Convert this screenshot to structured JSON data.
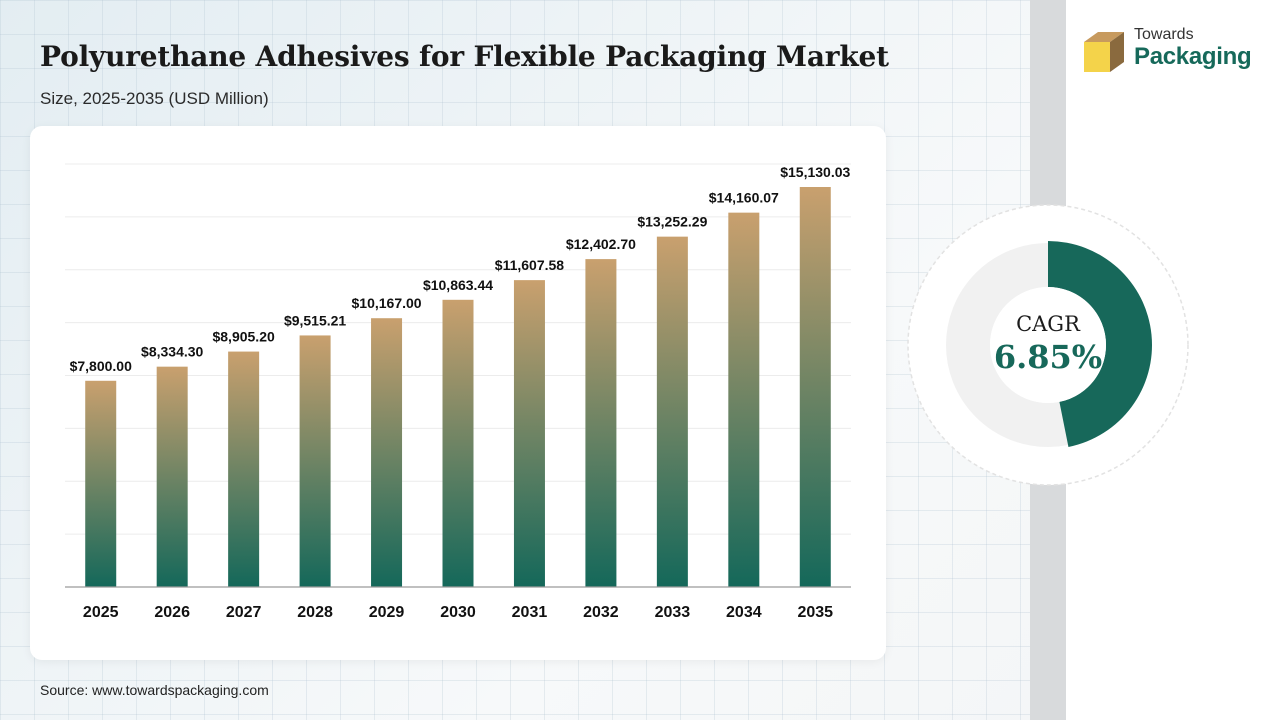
{
  "header": {
    "title": "Polyurethane Adhesives for Flexible Packaging Market",
    "subtitle": "Size, 2025-2035 (USD Million)"
  },
  "logo": {
    "line1": "Towards",
    "line2": "Packaging"
  },
  "cagr": {
    "label": "CAGR",
    "value": "6.85%",
    "fraction": 0.4685
  },
  "source": "Source: www.towardspackaging.com",
  "colors": {
    "bar_top": "#c9a06e",
    "bar_bottom": "#14685a",
    "accent": "#17685a",
    "donut_track": "#f1f1f1"
  },
  "chart_data": {
    "type": "bar",
    "categories": [
      "2025",
      "2026",
      "2027",
      "2028",
      "2029",
      "2030",
      "2031",
      "2032",
      "2033",
      "2034",
      "2035"
    ],
    "values": [
      7800.0,
      8334.3,
      8905.2,
      9515.21,
      10167.0,
      10863.44,
      11607.58,
      12402.7,
      13252.29,
      14160.07,
      15130.03
    ],
    "value_labels": [
      "$7,800.00",
      "$8,334.30",
      "$8,905.20",
      "$9,515.21",
      "$10,167.00",
      "$10,863.44",
      "$11,607.58",
      "$12,402.70",
      "$13,252.29",
      "$14,160.07",
      "$15,130.03"
    ],
    "title": "Polyurethane Adhesives for Flexible Packaging Market",
    "xlabel": "",
    "ylabel": "",
    "ylim": [
      0,
      16000
    ],
    "grid": true,
    "legend": "none"
  }
}
